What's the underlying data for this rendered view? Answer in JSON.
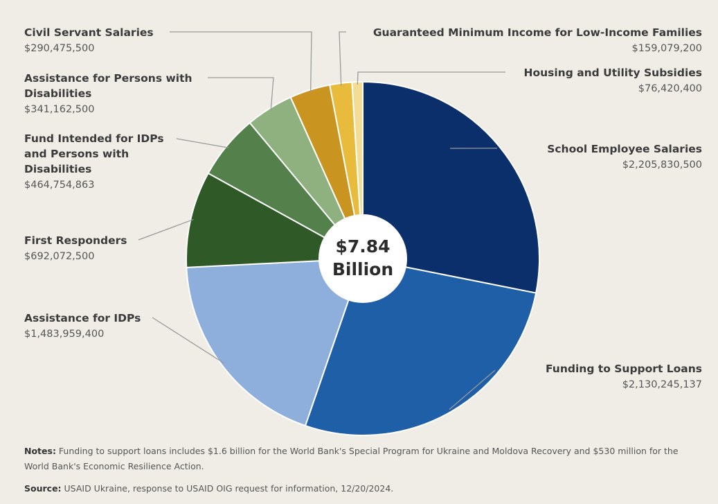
{
  "chart_data": {
    "type": "pie",
    "center_label": [
      "$7.84",
      "Billion"
    ],
    "slices": [
      {
        "name": "School Employee Salaries",
        "label": "$2,205,830,500",
        "value": 2205830500,
        "color": "#0b2f6b"
      },
      {
        "name": "Funding to Support Loans",
        "label": "$2,130,245,137",
        "value": 2130245137,
        "color": "#1f5fa8"
      },
      {
        "name": "Assistance for IDPs",
        "label": "$1,483,959,400",
        "value": 1483959400,
        "color": "#8eaedb"
      },
      {
        "name": "First Responders",
        "label": "$692,072,500",
        "value": 692072500,
        "color": "#2f5a28"
      },
      {
        "name": "Fund Intended for IDPs and Persons with Disabilities",
        "label": "$464,754,863",
        "value": 464754863,
        "color": "#53804b"
      },
      {
        "name": "Assistance for Persons with Disabilities",
        "label": "$341,162,500",
        "value": 341162500,
        "color": "#8fb17f"
      },
      {
        "name": "Civil Servant Salaries",
        "label": "$290,475,500",
        "value": 290475500,
        "color": "#c9941f"
      },
      {
        "name": "Guaranteed Minimum Income for Low-Income Families",
        "label": "$159,079,200",
        "value": 159079200,
        "color": "#e8bb3c"
      },
      {
        "name": "Housing and Utility Subsidies",
        "label": "$76,420,400",
        "value": 76420400,
        "color": "#f3dc93"
      }
    ]
  },
  "notes": {
    "label": "Notes:",
    "text": " Funding to support loans includes $1.6 billion for the World Bank's Special Program for Ukraine and Moldova Recovery and $530 million for the World Bank's Economic Resilience Action."
  },
  "source": {
    "label": "Source:",
    "text": " USAID Ukraine, response to USAID OIG request for information, 12/20/2024."
  }
}
